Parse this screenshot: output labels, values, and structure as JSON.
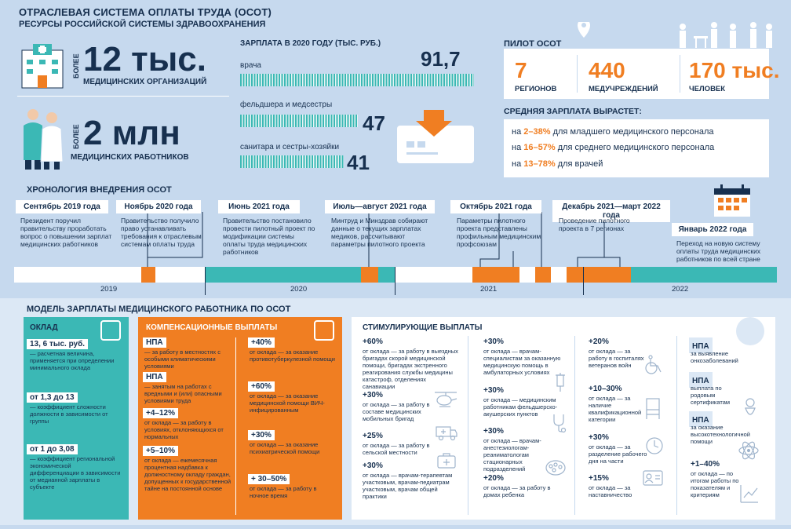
{
  "title": "ОТРАСЛЕВАЯ СИСТЕМА ОПЛАТЫ ТРУДА (ОСОТ)",
  "subtitle": "РЕСУРСЫ РОССИЙСКОЙ СИСТЕМЫ ЗДРАВООХРАНЕНИЯ",
  "resources": {
    "orgs": {
      "prefix": "БОЛЕЕ",
      "value": "12 тыс.",
      "caption": "МЕДИЦИНСКИХ ОРГАНИЗАЦИЙ"
    },
    "workers": {
      "prefix": "БОЛЕЕ",
      "value": "2 млн",
      "caption": "МЕДИЦИНСКИХ РАБОТНИКОВ"
    }
  },
  "salary": {
    "title": "ЗАРПЛАТА В 2020 ГОДУ (ТЫС. РУБ.)",
    "rows": [
      {
        "label": "врача",
        "value": "91,7",
        "amount": 91.7
      },
      {
        "label": "фельдшера и медсестры",
        "value": "47",
        "amount": 47
      },
      {
        "label": "санитара и сестры-хозяйки",
        "value": "41",
        "amount": 41
      }
    ]
  },
  "pilot": {
    "title": "ПИЛОТ ОСОТ",
    "stats": [
      {
        "num": "7",
        "cap": "РЕГИОНОВ"
      },
      {
        "num": "440",
        "cap": "МЕДУЧРЕЖДЕНИЙ"
      },
      {
        "num": "170 тыс.",
        "cap": "ЧЕЛОВЕК"
      }
    ],
    "growth_title": "СРЕДНЯЯ ЗАРПЛАТА ВЫРАСТЕТ:",
    "growth": [
      {
        "pre": "на",
        "pct": "2–38%",
        "post": "для младшего медицинского персонала"
      },
      {
        "pre": "на",
        "pct": "16–57%",
        "post": "для среднего медицинского персонала"
      },
      {
        "pre": "на",
        "pct": "13–78%",
        "post": "для врачей"
      }
    ]
  },
  "timeline": {
    "title": "ХРОНОЛОГИЯ ВНЕДРЕНИЯ ОСОТ",
    "events": [
      {
        "head": "Сентябрь 2019 года",
        "text": "Президент поручил правительству проработать вопрос о повышении зарплат медицинских работников"
      },
      {
        "head": "Ноябрь 2020 года",
        "text": "Правительство получило право устанавливать требования к отраслевым системам оплаты труда"
      },
      {
        "head": "Июнь 2021 года",
        "text": "Правительство постановило провести пилотный проект по модификации системы оплаты труда медицинских работников"
      },
      {
        "head": "Июль—август 2021 года",
        "text": "Минтруд и Минздрав собирают данные о текущих зарплатах медиков, рассчитывают параметры пилотного проекта"
      },
      {
        "head": "Октябрь 2021 года",
        "text": "Параметры пилотного проекта представлены профильным медицинским профсоюзам"
      },
      {
        "head": "Декабрь 2021—март 2022 года",
        "text": "Проведение пилотного проекта в 7 регионах"
      },
      {
        "head": "Январь 2022 года",
        "text": "Переход на новую систему оплаты труда медицинских работников по всей стране"
      }
    ],
    "years": [
      "2019",
      "2020",
      "2021",
      "2022"
    ]
  },
  "model": {
    "title": "МОДЕЛЬ ЗАРПЛАТЫ МЕДИЦИНСКОГО РАБОТНИКА ПО ОСОТ",
    "salary_col": {
      "title": "ОКЛАД",
      "items": [
        {
          "val": "13, 6 тыс. руб.",
          "txt": "— расчетная величина, применяется при определении минимального оклада"
        },
        {
          "val": "от 1,3 до 13",
          "txt": "— коэффициент сложности должности в зависимости от группы"
        },
        {
          "val": "от 1 до 3,08",
          "txt": "— коэффициент региональной экономической дифференциации в зависимости от медианной зарплаты в субъекте"
        }
      ]
    },
    "comp_col": {
      "title": "КОМПЕНСАЦИОННЫЕ ВЫПЛАТЫ",
      "left": [
        {
          "val": "НПА",
          "txt": "— за работу в местностях с особыми климатическими условиями"
        },
        {
          "val": "НПА",
          "txt": "— занятым на работах с вредными и (или) опасными условиями труда"
        },
        {
          "val": "+4–12%",
          "txt": "от оклада — за работу в условиях, отклоняющихся от нормальных"
        },
        {
          "val": "+5–10%",
          "txt": "от оклада — ежемесячная процентная надбавка к должностному окладу граждан, допущенных к государственной тайне на постоянной основе"
        }
      ],
      "right": [
        {
          "val": "+40%",
          "txt": "от оклада — за оказание противотуберкулезной помощи"
        },
        {
          "val": "+60%",
          "txt": "от оклада — за оказание медицинской помощи ВИЧ-инфицированным"
        },
        {
          "val": "+30%",
          "txt": "от оклада — за оказание психиатрической помощи"
        },
        {
          "val": "+ 30–50%",
          "txt": "от оклада — за работу в ночное время"
        }
      ]
    },
    "stim_col": {
      "title": "СТИМУЛИРУЮЩИЕ ВЫПЛАТЫ",
      "c1": [
        {
          "val": "+60%",
          "txt": "от оклада — за работу в выездных бригадах скорой медицинской помощи, бригадах экстренного реагирования службы медицины катастроф, отделениях санавиации"
        },
        {
          "val": "+30%",
          "txt": "от оклада — за работу в составе медицинских мобильных бригад"
        },
        {
          "val": "+25%",
          "txt": "от оклада — за работу в сельской местности"
        },
        {
          "val": "+30%",
          "txt": "от оклада — врачам-терапевтам участковым, врачам-педиатрам участковым, врачам общей практики"
        }
      ],
      "c2": [
        {
          "val": "+30%",
          "txt": "от оклада — врачам-специалистам за оказанную медицинскую помощь в амбулаторных условиях"
        },
        {
          "val": "+30%",
          "txt": "от оклада — медицинским работникам фельдшерско-акушерских пунктов"
        },
        {
          "val": "+30%",
          "txt": "от оклада — врачам-анестезиологам-реаниматологам стационарных подразделений"
        },
        {
          "val": "+20%",
          "txt": "от оклада — за работу в домах ребенка"
        }
      ],
      "c3": [
        {
          "val": "+20%",
          "txt": "от оклада — за работу в госпиталях ветеранов войн"
        },
        {
          "val": "+10–30%",
          "txt": "от оклада — за наличие квалификационной категории"
        },
        {
          "val": "+30%",
          "txt": "от оклада — за разделение рабочего дня на части"
        },
        {
          "val": "+15%",
          "txt": "от оклада — за наставничество"
        }
      ],
      "c4": [
        {
          "val": "НПА",
          "txt": "за выявление онкозаболеваний"
        },
        {
          "val": "НПА",
          "txt": "выплата по родовым сертификатам"
        },
        {
          "val": "НПА",
          "txt": "за оказание высокотехнологичной помощи"
        },
        {
          "val": "+1–40%",
          "txt": "от оклада — по итогам работы по показателям и критериям"
        }
      ]
    }
  },
  "colors": {
    "navy": "#17304f",
    "orange": "#f07e22",
    "teal": "#3bb8b5",
    "bg": "#c6d9ee"
  }
}
